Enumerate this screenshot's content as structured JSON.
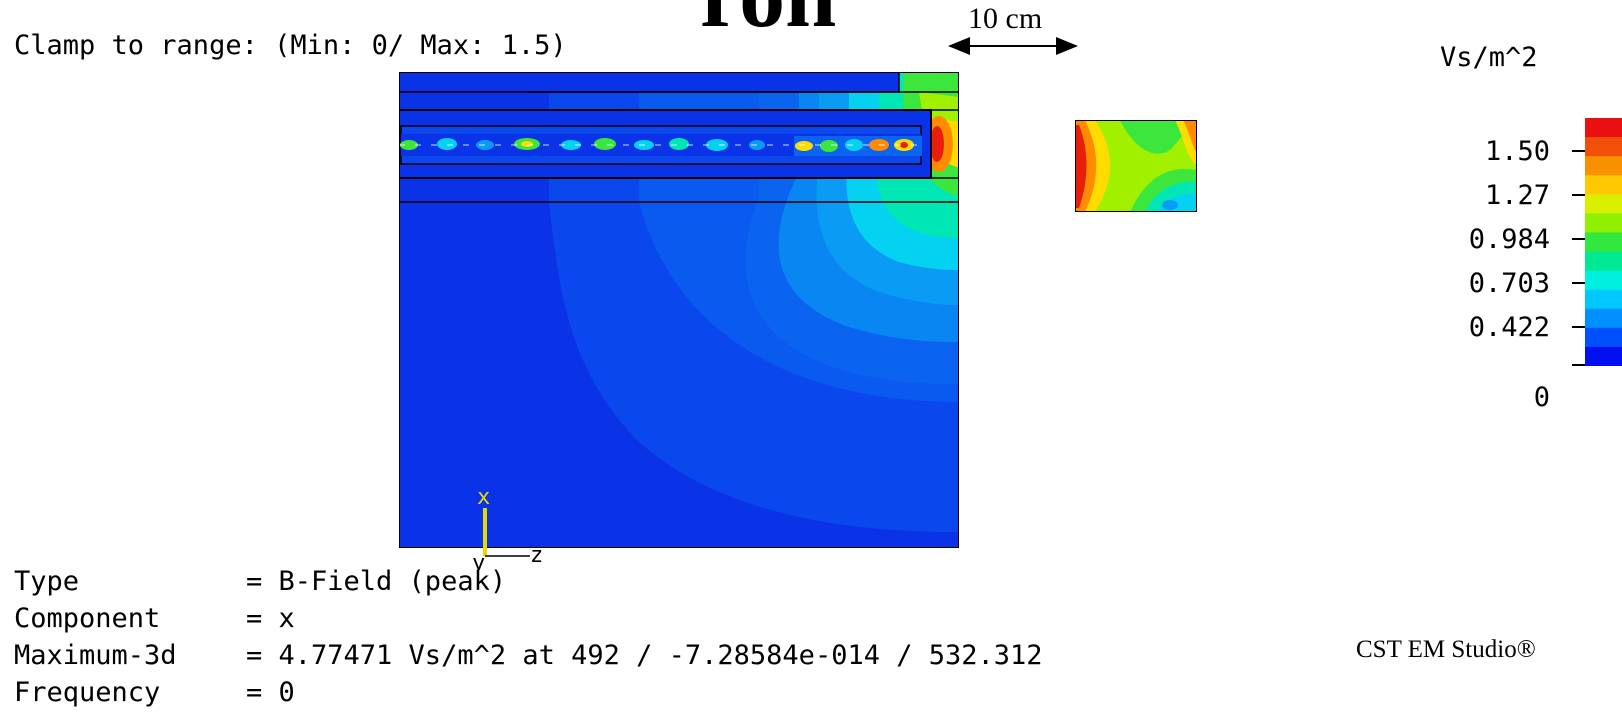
{
  "header": {
    "partial_title": "ron",
    "clamp_range": "Clamp to range: (Min: 0/ Max: 1.5)"
  },
  "scale_bar": {
    "label": "10 cm"
  },
  "colorbar": {
    "unit": "Vs/m^2",
    "ticks": [
      "1.50",
      "1.27",
      "0.984",
      "0.703",
      "0.422",
      "0"
    ],
    "colors": [
      "#e81010",
      "#f0500a",
      "#f89000",
      "#ffc800",
      "#d8f000",
      "#90f000",
      "#30e840",
      "#00e890",
      "#00f0e0",
      "#00c8ff",
      "#0090ff",
      "#0050ff",
      "#0010f0"
    ]
  },
  "axis_triad": {
    "x": "x",
    "y": "y",
    "z": "z"
  },
  "info": {
    "type_label": "Type",
    "type_value": "= B-Field (peak)",
    "component_label": "Component",
    "component_value": "= x",
    "maximum_label": "Maximum-3d",
    "maximum_value": "= 4.77471 Vs/m^2 at 492 / -7.28584e-014 / 532.312",
    "frequency_label": "Frequency",
    "frequency_value": "= 0"
  },
  "brand": "CST EM Studio®",
  "field_colors": {
    "background": "#0a32e6",
    "mid_blue": "#0a64f0",
    "light_blue": "#0a9cf5",
    "cyan": "#05d2f0",
    "aqua": "#00e6b4",
    "green": "#3ce63c",
    "yellow_green": "#a0f000",
    "yellow": "#ffdc00",
    "orange": "#ff8c00",
    "red": "#e61e0a"
  }
}
